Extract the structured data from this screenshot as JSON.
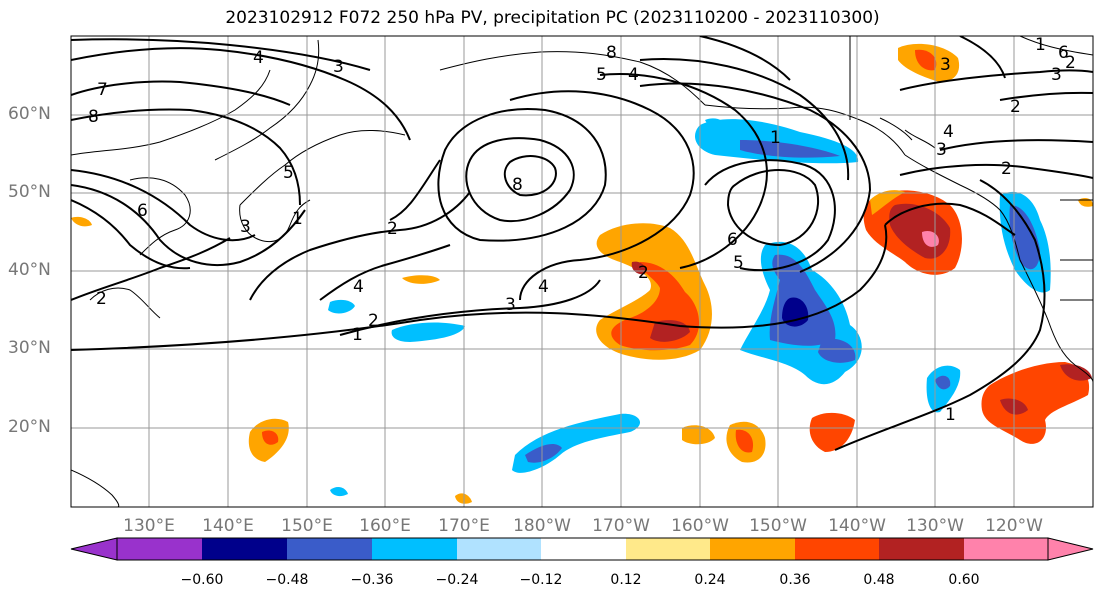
{
  "title": "2023102912 F072 250 hPa PV, precipitation PC (2023110200 - 2023110300)",
  "lat_labels": [
    "60°N",
    "50°N",
    "40°N",
    "30°N",
    "20°N"
  ],
  "lon_labels": [
    "130°E",
    "140°E",
    "150°E",
    "160°E",
    "170°E",
    "180°W",
    "170°W",
    "160°W",
    "150°W",
    "140°W",
    "130°W",
    "120°W"
  ],
  "colorbar": {
    "ticks": [
      "−0.60",
      "−0.48",
      "−0.36",
      "−0.24",
      "−0.12",
      "0.12",
      "0.24",
      "0.36",
      "0.48",
      "0.60"
    ],
    "colors": [
      "#9932cc",
      "#00008b",
      "#3a5cc9",
      "#00bfff",
      "#b0e2ff",
      "#ffffff",
      "#ffe98a",
      "#ffa500",
      "#ff4500",
      "#b22222",
      "#ff82ab"
    ]
  },
  "contour_labels": [
    "4",
    "3",
    "7",
    "8",
    "5",
    "6",
    "1",
    "2",
    "8",
    "1",
    "8",
    "5",
    "4",
    "2",
    "3",
    "4",
    "2",
    "1",
    "2",
    "3",
    "4",
    "2",
    "6",
    "5",
    "1",
    "3",
    "2",
    "4",
    "3",
    "2",
    "1",
    "6",
    "3"
  ]
}
